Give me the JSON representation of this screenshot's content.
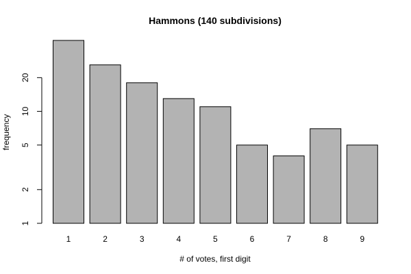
{
  "chart_data": {
    "type": "bar",
    "title": "Hammons (140 subdivisions)",
    "xlabel": "# of votes, first digit",
    "ylabel": "frequency",
    "categories": [
      "1",
      "2",
      "3",
      "4",
      "5",
      "6",
      "7",
      "8",
      "9"
    ],
    "values": [
      43,
      26,
      18,
      13,
      11,
      5,
      4,
      7,
      5
    ],
    "y_scale": "log",
    "ylim": [
      1,
      43
    ],
    "y_ticks": [
      1,
      2,
      5,
      10,
      20
    ],
    "y_tick_labels": [
      "1",
      "2",
      "5",
      "10",
      "20"
    ],
    "grid": false,
    "bar_color": "#b3b3b3",
    "bar_border_color": "#000000"
  }
}
